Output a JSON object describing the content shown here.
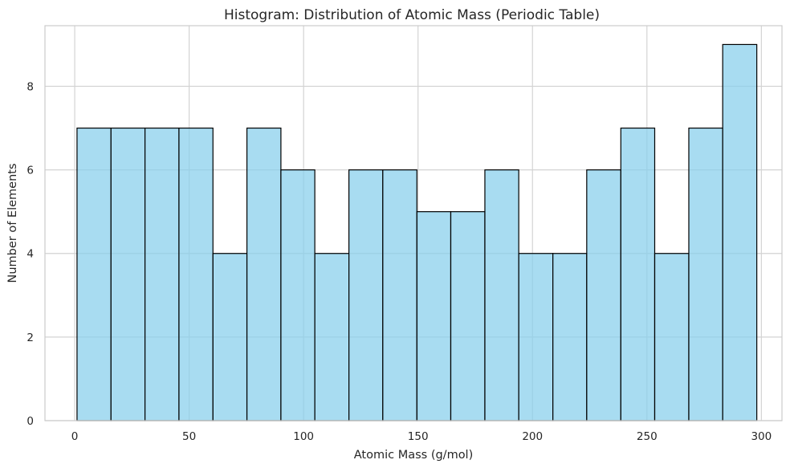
{
  "chart_data": {
    "type": "bar",
    "title": "Histogram: Distribution of Atomic Mass (Periodic Table)",
    "xlabel": "Atomic Mass (g/mol)",
    "ylabel": "Number of Elements",
    "bin_edges": [
      1.008,
      15.85,
      30.7,
      45.55,
      60.4,
      75.24,
      90.09,
      104.9,
      119.8,
      134.6,
      149.5,
      164.3,
      179.2,
      194.0,
      208.9,
      223.7,
      238.6,
      253.4,
      268.3,
      283.1,
      298.0
    ],
    "values": [
      7,
      7,
      7,
      7,
      4,
      7,
      6,
      4,
      6,
      6,
      5,
      5,
      6,
      4,
      4,
      6,
      7,
      4,
      7,
      9
    ],
    "xlim": [
      -13.0,
      309.0
    ],
    "ylim": [
      0,
      9.45
    ],
    "x_ticks": [
      0,
      50,
      100,
      150,
      200,
      250,
      300
    ],
    "x_tick_labels": [
      "0",
      "50",
      "100",
      "150",
      "200",
      "250",
      "300"
    ],
    "y_ticks": [
      0,
      2,
      4,
      6,
      8
    ],
    "y_tick_labels": [
      "0",
      "2",
      "4",
      "6",
      "8"
    ],
    "grid": true,
    "bar_color": "#87ceeb",
    "edge_color": "#000000"
  }
}
